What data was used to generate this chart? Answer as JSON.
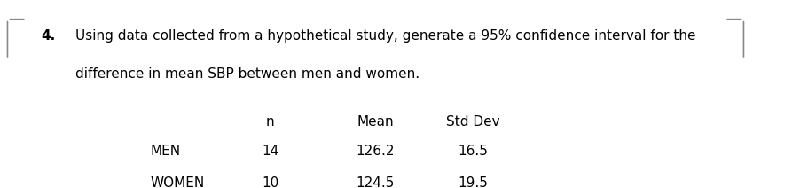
{
  "question_number": "4.",
  "question_text_line1": "Using data collected from a hypothetical study, generate a 95% confidence interval for the",
  "question_text_line2": "difference in mean SBP between men and women.",
  "col_headers": [
    "n",
    "Mean",
    "Std Dev"
  ],
  "row_labels": [
    "MEN",
    "WOMEN"
  ],
  "table_data": [
    [
      14,
      126.2,
      16.5
    ],
    [
      10,
      124.5,
      19.5
    ]
  ],
  "bg_color": "#ffffff",
  "text_color": "#000000",
  "font_size": 11,
  "question_font_size": 11,
  "corner_bracket_color": "#888888"
}
